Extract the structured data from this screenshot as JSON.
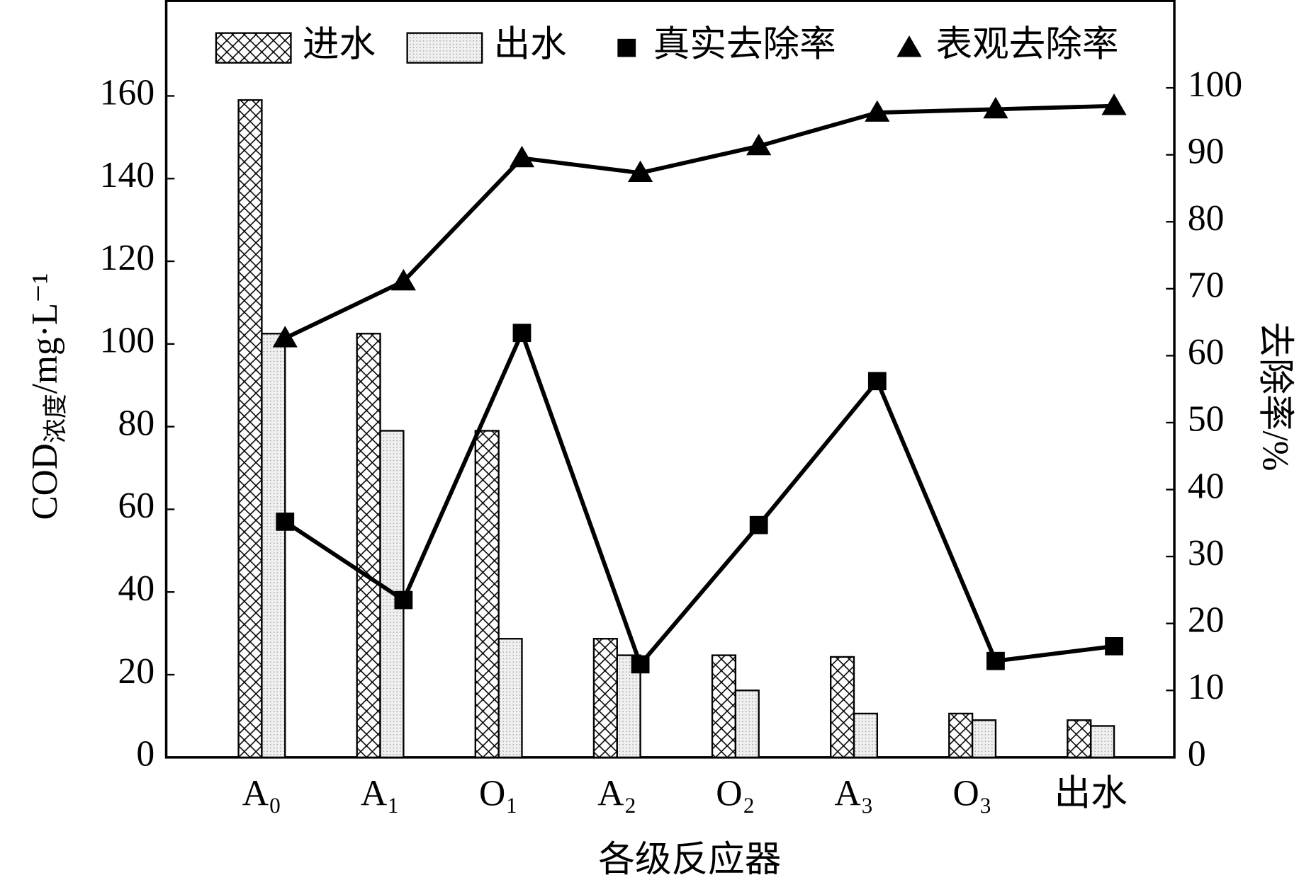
{
  "chart_data": {
    "type": "bar",
    "x_label": "各级反应器",
    "y_label": {
      "main": "COD",
      "sub": "浓度",
      "unit": "/mg·L⁻¹"
    },
    "y2_label": "去除率/%",
    "categories": [
      "A₀",
      "A₁",
      "O₁",
      "A₂",
      "O₂",
      "A₃",
      "O₃",
      "出水"
    ],
    "series": [
      {
        "name": "进水",
        "type": "bar",
        "pattern": "crosshatch",
        "color": "#000000",
        "values": [
          159,
          102.5,
          79,
          28.7,
          24.7,
          24.3,
          10.6,
          9
        ]
      },
      {
        "name": "出水",
        "type": "bar",
        "pattern": "dots",
        "color": "#000000",
        "values": [
          102.5,
          79,
          28.7,
          24.7,
          16.2,
          10.6,
          9,
          7.6
        ]
      },
      {
        "name": "真实去除率",
        "type": "line",
        "marker": "square",
        "axis": "y2",
        "color": "#000000",
        "values": [
          35.2,
          23.5,
          63.4,
          13.9,
          34.7,
          56.2,
          14.4,
          16.6
        ]
      },
      {
        "name": "表观去除率",
        "type": "line",
        "marker": "triangle",
        "axis": "y2",
        "color": "#000000",
        "values": [
          62.6,
          71.1,
          89.5,
          87.3,
          91.3,
          96.3,
          96.8,
          97.3
        ]
      }
    ],
    "ylim": [
      0,
      183
    ],
    "yticks": [
      0,
      20,
      40,
      60,
      80,
      100,
      120,
      140,
      160
    ],
    "y2lim": [
      0,
      113
    ],
    "y2ticks": [
      0,
      10,
      20,
      30,
      40,
      50,
      60,
      70,
      80,
      90,
      100
    ],
    "legend": "top-right"
  }
}
